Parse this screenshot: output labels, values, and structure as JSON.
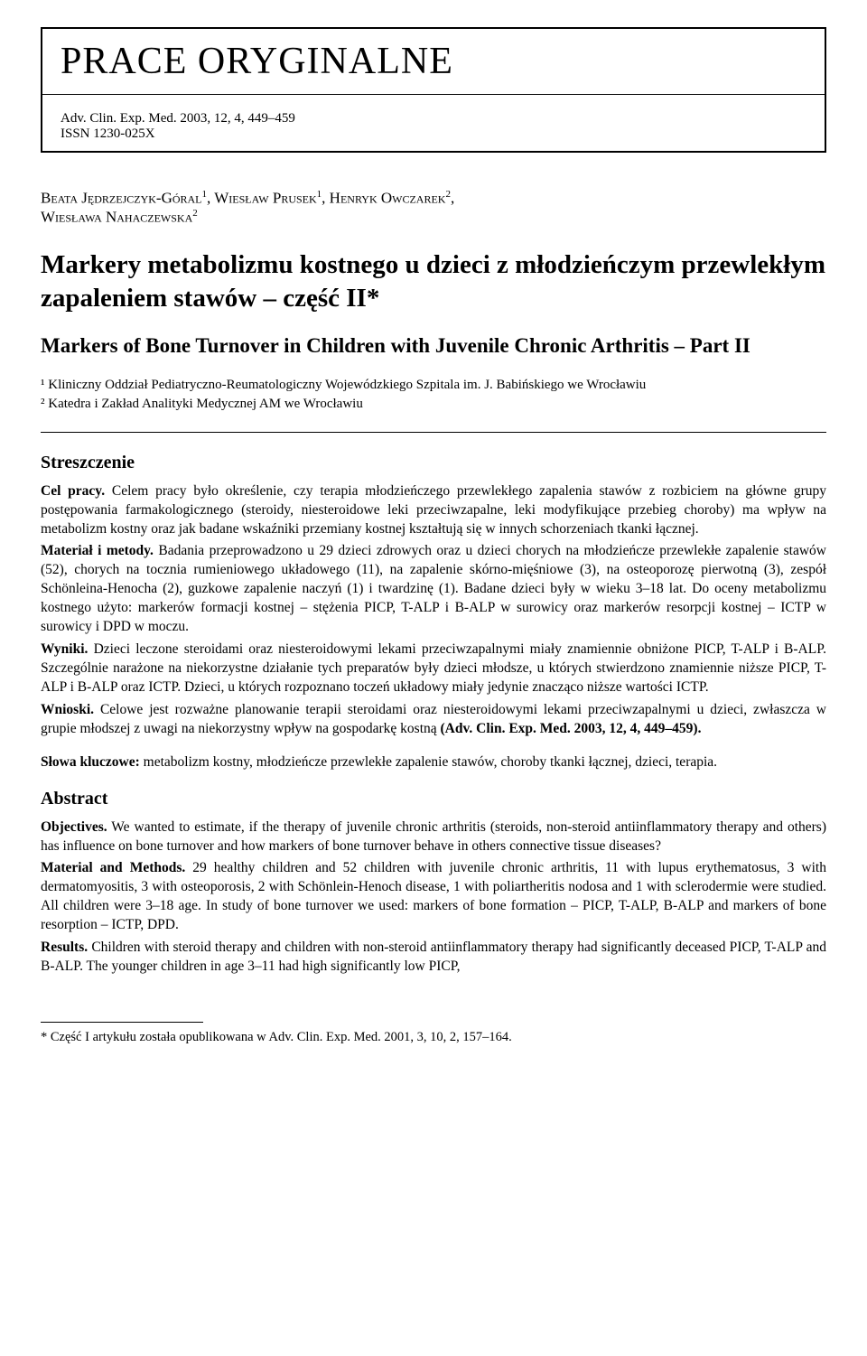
{
  "header": {
    "section_title": "PRACE ORYGINALNE",
    "journal_line": "Adv. Clin. Exp. Med. 2003, 12, 4, 449–459",
    "issn_line": "ISSN 1230-025X"
  },
  "authors_html": "BEATA JĘDRZEJCZYK-GÓRAL¹, WIESŁAW PRUSEK¹, HENRYK OWCZAREK², WIESŁAWA NAHACZEWSKA²",
  "authors": [
    {
      "name": "Beata Jędrzejczyk-Góral",
      "aff": "1"
    },
    {
      "name": "Wiesław Prusek",
      "aff": "1"
    },
    {
      "name": "Henryk Owczarek",
      "aff": "2"
    },
    {
      "name": "Wiesława Nahaczewska",
      "aff": "2"
    }
  ],
  "title_pl": "Markery metabolizmu kostnego u dzieci z młodzieńczym przewlekłym zapaleniem stawów – część II*",
  "title_en": "Markers of Bone Turnover in Children with Juvenile Chronic Arthritis – Part II",
  "affiliations": {
    "a1": "¹ Kliniczny Oddział Pediatryczno-Reumatologiczny Wojewódzkiego Szpitala im. J. Babińskiego we Wrocławiu",
    "a2": "² Katedra i Zakład Analityki Medycznej AM we Wrocławiu"
  },
  "streszczenie": {
    "heading": "Streszczenie",
    "cel_label": "Cel pracy.",
    "cel_text": " Celem pracy było określenie, czy terapia młodzieńczego przewlekłego zapalenia stawów z rozbiciem na główne grupy postępowania farmakologicznego (steroidy, niesteroidowe leki przeciwzapalne, leki modyfikujące przebieg choroby) ma wpływ na metabolizm kostny oraz jak badane wskaźniki przemiany kostnej kształtują się w innych schorzeniach tkanki łącznej.",
    "mat_label": "Materiał i metody.",
    "mat_text": " Badania przeprowadzono u 29 dzieci zdrowych oraz u dzieci chorych na młodzieńcze przewlekłe zapalenie stawów (52), chorych na tocznia rumieniowego układowego (11), na zapalenie skórno-mięśniowe (3), na osteoporozę pierwotną (3), zespół Schönleina-Henocha (2), guzkowe zapalenie naczyń (1) i twardzinę (1). Badane dzieci były w wieku 3–18 lat. Do oceny metabolizmu kostnego użyto: markerów formacji kostnej – stężenia PICP, T-ALP i B-ALP w surowicy oraz markerów resorpcji kostnej – ICTP w surowicy i DPD w moczu.",
    "wyn_label": "Wyniki.",
    "wyn_text": " Dzieci leczone steroidami oraz niesteroidowymi lekami przeciwzapalnymi miały znamiennie obniżone PICP, T-ALP i B-ALP. Szczególnie narażone na niekorzystne działanie tych preparatów były dzieci młodsze, u których stwierdzono znamiennie niższe PICP, T-ALP i B-ALP oraz ICTP. Dzieci, u których rozpoznano toczeń układowy miały jedynie znacząco niższe wartości ICTP.",
    "wni_label": "Wnioski.",
    "wni_text": " Celowe jest rozważne planowanie terapii steroidami oraz niesteroidowymi lekami przeciwzapalnymi u dzieci, zwłaszcza w grupie młodszej z uwagi na niekorzystny wpływ na gospodarkę kostną ",
    "wni_cite": "(Adv. Clin. Exp. Med. 2003, 12, 4, 449–459)."
  },
  "keywords_pl": {
    "label": "Słowa kluczowe:",
    "text": " metabolizm kostny, młodzieńcze przewlekłe zapalenie stawów, choroby tkanki łącznej, dzieci, terapia."
  },
  "abstract": {
    "heading": "Abstract",
    "obj_label": "Objectives.",
    "obj_text": " We wanted to estimate, if the therapy of juvenile chronic arthritis (steroids, non-steroid antiinflammatory therapy and others) has influence on bone turnover and how markers of bone turnover behave in others connective tissue diseases?",
    "mat_label": "Material and Methods.",
    "mat_text": " 29 healthy children and 52 children with juvenile chronic arthritis, 11 with lupus erythematosus, 3 with dermatomyositis, 3 with osteoporosis, 2 with Schönlein-Henoch disease, 1 with poliartheritis nodosa and 1 with sclerodermie were studied. All children were 3–18 age. In study of bone turnover we used: markers of bone formation – PICP, T-ALP, B-ALP and markers of bone resorption – ICTP, DPD.",
    "res_label": "Results.",
    "res_text": " Children with steroid therapy and children with non-steroid antiinflammatory therapy had significantly deceased PICP, T-ALP and B-ALP. The younger children in age 3–11 had high significantly low PICP,"
  },
  "footnote": "* Część I artykułu została opublikowana w Adv. Clin. Exp. Med. 2001, 3, 10, 2, 157–164."
}
